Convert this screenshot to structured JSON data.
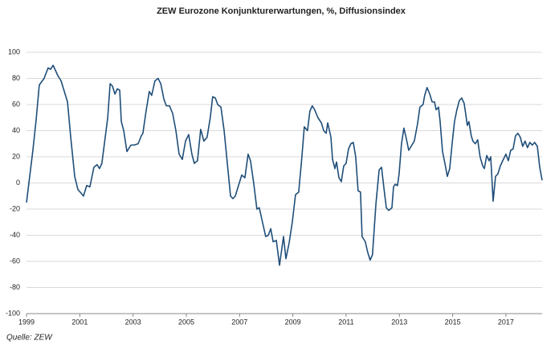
{
  "chart_data": {
    "type": "line",
    "title": "ZEW Eurozone Konjunkturerwartungen, %, Diffusionsindex",
    "source": "Quelle: ZEW",
    "color": "#1f4e79",
    "grid": true,
    "xlim": [
      1999,
      2018.36
    ],
    "xticks": [
      1999,
      2001,
      2003,
      2005,
      2007,
      2009,
      2011,
      2013,
      2015,
      2017
    ],
    "ylim": [
      -100,
      100
    ],
    "yticks": [
      -100,
      -80,
      -60,
      -40,
      -20,
      0,
      20,
      40,
      60,
      80,
      100
    ],
    "x": [
      1999.0,
      1999.24,
      1999.36,
      1999.48,
      1999.66,
      1999.81,
      1999.9,
      2000.0,
      2000.18,
      2000.3,
      2000.42,
      2000.54,
      2000.66,
      2000.81,
      2000.93,
      2001.14,
      2001.26,
      2001.38,
      2001.53,
      2001.65,
      2001.74,
      2001.83,
      2002.05,
      2002.14,
      2002.23,
      2002.32,
      2002.41,
      2002.5,
      2002.56,
      2002.65,
      2002.77,
      2002.92,
      2003.04,
      2003.19,
      2003.31,
      2003.37,
      2003.49,
      2003.61,
      2003.7,
      2003.82,
      2003.94,
      2004.04,
      2004.16,
      2004.25,
      2004.37,
      2004.49,
      2004.61,
      2004.73,
      2004.85,
      2004.97,
      2005.09,
      2005.21,
      2005.3,
      2005.42,
      2005.54,
      2005.66,
      2005.78,
      2005.9,
      2005.99,
      2006.09,
      2006.18,
      2006.3,
      2006.42,
      2006.54,
      2006.66,
      2006.75,
      2006.84,
      2006.96,
      2007.08,
      2007.2,
      2007.32,
      2007.41,
      2007.53,
      2007.65,
      2007.74,
      2007.86,
      2007.98,
      2008.08,
      2008.17,
      2008.26,
      2008.38,
      2008.5,
      2008.65,
      2008.74,
      2008.86,
      2008.98,
      2009.1,
      2009.22,
      2009.34,
      2009.43,
      2009.55,
      2009.64,
      2009.73,
      2009.82,
      2009.94,
      2010.07,
      2010.16,
      2010.25,
      2010.31,
      2010.43,
      2010.49,
      2010.58,
      2010.64,
      2010.73,
      2010.82,
      2010.91,
      2011.0,
      2011.09,
      2011.18,
      2011.27,
      2011.36,
      2011.45,
      2011.54,
      2011.6,
      2011.72,
      2011.81,
      2011.9,
      2011.99,
      2012.12,
      2012.24,
      2012.33,
      2012.42,
      2012.51,
      2012.6,
      2012.72,
      2012.78,
      2012.84,
      2012.93,
      2012.99,
      2013.08,
      2013.17,
      2013.26,
      2013.35,
      2013.44,
      2013.56,
      2013.68,
      2013.77,
      2013.89,
      2013.95,
      2014.04,
      2014.14,
      2014.23,
      2014.32,
      2014.38,
      2014.47,
      2014.53,
      2014.62,
      2014.71,
      2014.8,
      2014.89,
      2014.98,
      2015.07,
      2015.16,
      2015.25,
      2015.34,
      2015.43,
      2015.49,
      2015.55,
      2015.61,
      2015.7,
      2015.76,
      2015.85,
      2015.94,
      2016.03,
      2016.13,
      2016.19,
      2016.28,
      2016.37,
      2016.43,
      2016.52,
      2016.61,
      2016.7,
      2016.79,
      2016.88,
      2017.0,
      2017.09,
      2017.18,
      2017.27,
      2017.36,
      2017.45,
      2017.54,
      2017.63,
      2017.72,
      2017.81,
      2017.9,
      2017.99,
      2018.08,
      2018.18,
      2018.27,
      2018.36
    ],
    "values": [
      -15,
      25,
      48,
      75,
      80,
      88,
      87,
      90,
      82,
      78,
      70,
      62,
      35,
      5,
      -5,
      -10,
      -2,
      -3,
      12,
      14,
      11,
      15,
      50,
      76,
      74,
      68,
      72,
      71,
      47,
      40,
      24,
      29,
      29,
      30,
      36,
      38,
      55,
      70,
      67,
      78,
      80,
      76,
      64,
      59,
      59,
      53,
      40,
      22,
      18,
      32,
      37,
      22,
      15,
      17,
      41,
      32,
      35,
      50,
      66,
      65,
      60,
      58,
      40,
      15,
      -10,
      -12,
      -10,
      -2,
      6,
      4,
      22,
      17,
      0,
      -20,
      -19,
      -30,
      -41,
      -40,
      -35,
      -45,
      -44,
      -63,
      -41,
      -58,
      -46,
      -30,
      -9,
      -7,
      20,
      43,
      40,
      55,
      59,
      56,
      50,
      46,
      40,
      38,
      46,
      35,
      18,
      11,
      16,
      4,
      1,
      13,
      15,
      26,
      30,
      31,
      20,
      -6,
      -7,
      -41,
      -45,
      -53,
      -59,
      -55,
      -16,
      10,
      12,
      -4,
      -19,
      -21,
      -19,
      -3,
      -1,
      -2,
      7,
      30,
      42,
      34,
      25,
      28,
      32,
      45,
      58,
      60,
      67,
      73,
      68,
      62,
      62,
      56,
      58,
      47,
      24,
      15,
      5,
      11,
      30,
      47,
      56,
      63,
      65,
      61,
      53,
      44,
      47,
      36,
      32,
      30,
      33,
      20,
      13,
      11,
      21,
      17,
      20,
      -14,
      5,
      7,
      13,
      17,
      22,
      17,
      25,
      26,
      36,
      38,
      35,
      28,
      32,
      27,
      31,
      29,
      31,
      28,
      12,
      2
    ]
  }
}
